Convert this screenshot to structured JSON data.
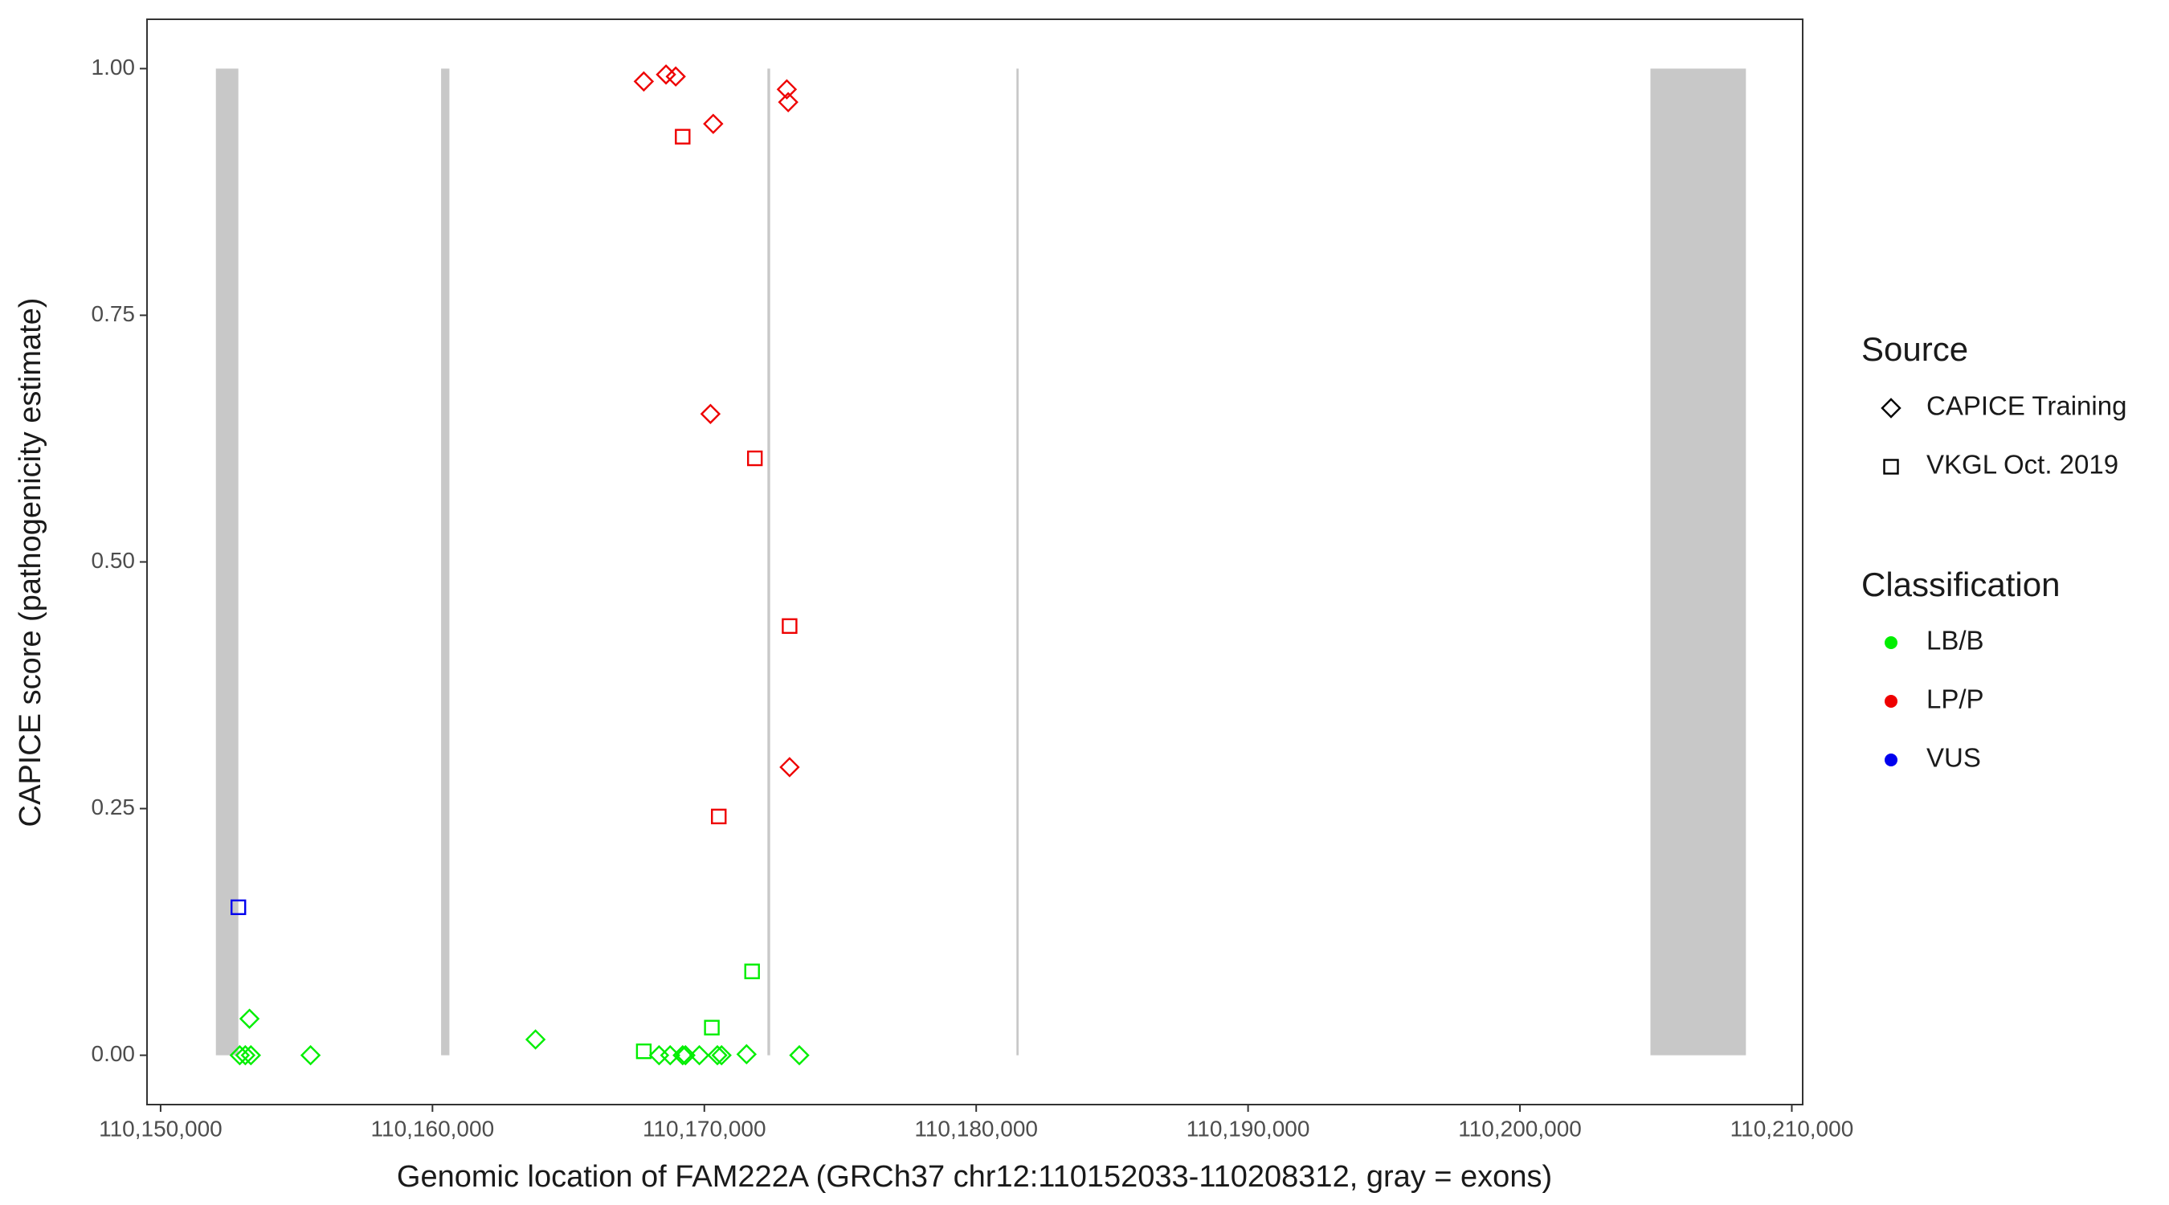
{
  "chart_data": {
    "type": "scatter",
    "x_label": "Genomic location of FAM222A (GRCh37 chr12:110152033-110208312, gray = exons)",
    "y_label": "CAPICE score (pathogenicity estimate)",
    "xlim": [
      110149500,
      110210400
    ],
    "ylim": [
      -0.05,
      1.05
    ],
    "xticks": [
      {
        "value": 110150000,
        "label": "110,150,000"
      },
      {
        "value": 110160000,
        "label": "110,160,000"
      },
      {
        "value": 110170000,
        "label": "110,170,000"
      },
      {
        "value": 110180000,
        "label": "110,180,000"
      },
      {
        "value": 110190000,
        "label": "110,190,000"
      },
      {
        "value": 110200000,
        "label": "110,200,000"
      },
      {
        "value": 110210000,
        "label": "110,210,000"
      }
    ],
    "yticks": [
      {
        "value": 0,
        "label": "0.00"
      },
      {
        "value": 0.25,
        "label": "0.25"
      },
      {
        "value": 0.5,
        "label": "0.50"
      },
      {
        "value": 0.75,
        "label": "0.75"
      },
      {
        "value": 1,
        "label": "1.00"
      }
    ],
    "exon_color": "#c8c8c8",
    "exons": [
      {
        "start": 110152033,
        "end": 110152860
      },
      {
        "start": 110160317,
        "end": 110160623
      },
      {
        "start": 110172320,
        "end": 110172420
      },
      {
        "start": 110181480,
        "end": 110181560
      },
      {
        "start": 110204800,
        "end": 110208312
      }
    ],
    "source_legend": {
      "title": "Source",
      "entries": [
        {
          "name": "CAPICE Training",
          "shape": "diamond"
        },
        {
          "name": "VKGL Oct. 2019",
          "shape": "square"
        }
      ]
    },
    "class_legend": {
      "title": "Classification",
      "entries": [
        {
          "name": "LB/B",
          "color": "#00ee00"
        },
        {
          "name": "LP/P",
          "color": "#ee0000"
        },
        {
          "name": "VUS",
          "color": "#0000ee"
        }
      ]
    },
    "points": {
      "x": [
        110167773,
        110168590,
        110168948,
        110170327,
        110173034,
        110173085,
        110170225,
        110173136,
        110169203,
        110171859,
        110173136,
        110170531,
        110152860,
        110171757,
        110170276,
        110167773,
        110153269,
        110163790,
        110152911,
        110153116,
        110153320,
        110155516,
        110168335,
        110168744,
        110169204,
        110169306,
        110169817,
        110170480,
        110170634,
        110171553,
        110173494
      ],
      "y": [
        0.987,
        0.994,
        0.992,
        0.944,
        0.979,
        0.966,
        0.65,
        0.292,
        0.931,
        0.605,
        0.435,
        0.242,
        0.15,
        0.085,
        0.028,
        0.004,
        0.037,
        0.016,
        0,
        0,
        0,
        0,
        0,
        0,
        0,
        0,
        0,
        0,
        0,
        0.001,
        0
      ],
      "source": [
        "CAPICE Training",
        "CAPICE Training",
        "CAPICE Training",
        "CAPICE Training",
        "CAPICE Training",
        "CAPICE Training",
        "CAPICE Training",
        "CAPICE Training",
        "VKGL Oct. 2019",
        "VKGL Oct. 2019",
        "VKGL Oct. 2019",
        "VKGL Oct. 2019",
        "VKGL Oct. 2019",
        "VKGL Oct. 2019",
        "VKGL Oct. 2019",
        "VKGL Oct. 2019",
        "CAPICE Training",
        "CAPICE Training",
        "CAPICE Training",
        "CAPICE Training",
        "CAPICE Training",
        "CAPICE Training",
        "CAPICE Training",
        "CAPICE Training",
        "CAPICE Training",
        "CAPICE Training",
        "CAPICE Training",
        "CAPICE Training",
        "CAPICE Training",
        "CAPICE Training",
        "CAPICE Training"
      ],
      "classification": [
        "LP/P",
        "LP/P",
        "LP/P",
        "LP/P",
        "LP/P",
        "LP/P",
        "LP/P",
        "LP/P",
        "LP/P",
        "LP/P",
        "LP/P",
        "LP/P",
        "VUS",
        "LB/B",
        "LB/B",
        "LB/B",
        "LB/B",
        "LB/B",
        "LB/B",
        "LB/B",
        "LB/B",
        "LB/B",
        "LB/B",
        "LB/B",
        "LB/B",
        "LB/B",
        "LB/B",
        "LB/B",
        "LB/B",
        "LB/B",
        "LB/B"
      ]
    }
  }
}
